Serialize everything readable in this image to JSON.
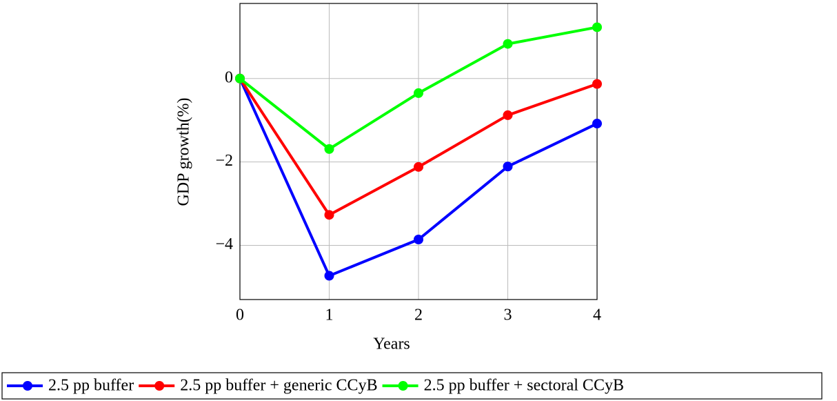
{
  "chart_data": {
    "type": "line",
    "xlabel": "Years",
    "ylabel": "GDP growth(%)",
    "x": [
      0,
      1,
      2,
      3,
      4
    ],
    "xlim": [
      0,
      4
    ],
    "xticks": [
      0,
      1,
      2,
      3,
      4
    ],
    "ylim": [
      -5.3,
      1.8
    ],
    "yticks": [
      {
        "value": -4,
        "label": "−4"
      },
      {
        "value": -2,
        "label": "−2"
      },
      {
        "value": 0,
        "label": "0"
      }
    ],
    "grid": true,
    "legend": "bottom",
    "series": [
      {
        "name": "2.5 pp buffer",
        "color": "#0000ff",
        "values": [
          0,
          -4.73,
          -3.86,
          -2.11,
          -1.08
        ]
      },
      {
        "name": "2.5 pp buffer + generic CCyB",
        "color": "#ff0000",
        "values": [
          0,
          -3.27,
          -2.12,
          -0.88,
          -0.13
        ]
      },
      {
        "name": "2.5 pp buffer + sectoral CCyB",
        "color": "#00ff00",
        "values": [
          0,
          -1.69,
          -0.35,
          0.83,
          1.23
        ]
      }
    ]
  }
}
